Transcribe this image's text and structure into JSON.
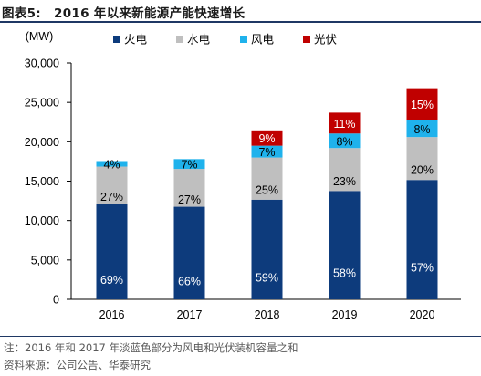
{
  "figure": {
    "title_label": "图表5:",
    "title_text": "2016 年以来新能源产能快速增长",
    "note": "注：2016 年和 2017 年淡蓝色部分为风电和光伏装机容量之和",
    "source": "资料来源：公司公告、华泰研究"
  },
  "chart_data": {
    "type": "bar",
    "stacked": true,
    "unit": "(MW)",
    "categories": [
      "2016",
      "2017",
      "2018",
      "2019",
      "2020"
    ],
    "ylim": [
      0,
      30000
    ],
    "yticks": [
      0,
      5000,
      10000,
      15000,
      20000,
      25000,
      30000
    ],
    "ytick_labels": [
      "0",
      "5,000",
      "10,000",
      "15,000",
      "20,000",
      "25,000",
      "30,000"
    ],
    "legend_position": "top",
    "series": [
      {
        "name": "火电",
        "color": "#0d3b7c",
        "label_color": "#ffffff",
        "values": [
          12100,
          11750,
          12650,
          13750,
          15150
        ],
        "labels": [
          "69%",
          "66%",
          "59%",
          "58%",
          "57%"
        ]
      },
      {
        "name": "水电",
        "color": "#bfbfbf",
        "label_color": "#000000",
        "values": [
          4750,
          4800,
          5350,
          5450,
          5450
        ],
        "labels": [
          "27%",
          "27%",
          "25%",
          "23%",
          "20%"
        ]
      },
      {
        "name": "风电",
        "color": "#1fb2ec",
        "label_color": "#000000",
        "values": [
          700,
          1250,
          1500,
          1850,
          2150
        ],
        "labels": [
          "4%",
          "7%",
          "7%",
          "8%",
          "8%"
        ]
      },
      {
        "name": "光伏",
        "color": "#c00000",
        "label_color": "#ffffff",
        "values": [
          0,
          0,
          1950,
          2650,
          4050
        ],
        "labels": [
          "",
          "",
          "9%",
          "11%",
          "15%"
        ]
      }
    ]
  }
}
